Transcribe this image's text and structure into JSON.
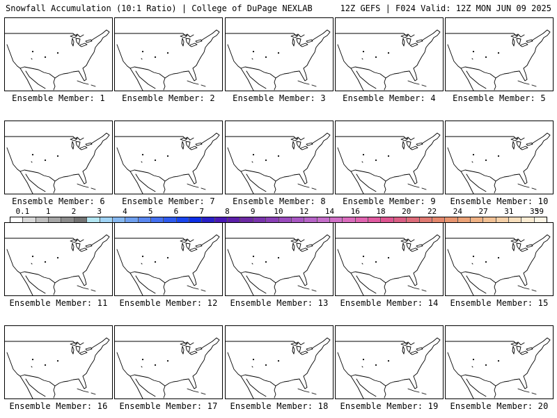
{
  "header": {
    "left": "Snowfall Accumulation (10:1 Ratio) | College of DuPage NEXLAB",
    "right": "12Z GEFS | F024 Valid: 12Z MON JUN 09 2025"
  },
  "panels": [
    {
      "label": "Ensemble Member: 1"
    },
    {
      "label": "Ensemble Member: 2"
    },
    {
      "label": "Ensemble Member: 3"
    },
    {
      "label": "Ensemble Member: 4"
    },
    {
      "label": "Ensemble Member: 5"
    },
    {
      "label": "Ensemble Member: 6"
    },
    {
      "label": "Ensemble Member: 7"
    },
    {
      "label": "Ensemble Member: 8"
    },
    {
      "label": "Ensemble Member: 9"
    },
    {
      "label": "Ensemble Member: 10"
    },
    {
      "label": "Ensemble Member: 11"
    },
    {
      "label": "Ensemble Member: 12"
    },
    {
      "label": "Ensemble Member: 13"
    },
    {
      "label": "Ensemble Member: 14"
    },
    {
      "label": "Ensemble Member: 15"
    },
    {
      "label": "Ensemble Member: 16"
    },
    {
      "label": "Ensemble Member: 17"
    },
    {
      "label": "Ensemble Member: 18"
    },
    {
      "label": "Ensemble Member: 19"
    },
    {
      "label": "Ensemble Member: 20"
    }
  ],
  "colorbar": {
    "labels": [
      "0.1",
      "1",
      "2",
      "3",
      "4",
      "5",
      "6",
      "7",
      "8",
      "9",
      "10",
      "12",
      "14",
      "16",
      "18",
      "20",
      "22",
      "24",
      "27",
      "31",
      "35",
      "39"
    ],
    "colors": [
      "#ffffff",
      "#d9d9d9",
      "#bfbfbf",
      "#a6a6a6",
      "#8c8c8c",
      "#737373",
      "#b3e6f2",
      "#9fd3f5",
      "#86b8f0",
      "#6e9fee",
      "#5a87f0",
      "#4470f0",
      "#2f5bef",
      "#1a45ee",
      "#0d2fe6",
      "#2a20c8",
      "#4a18b5",
      "#5c1fa8",
      "#6d2aa3",
      "#7a34ad",
      "#8a3fb6",
      "#9a4bbd",
      "#a857c2",
      "#b664c7",
      "#c46ec9",
      "#d070c6",
      "#da6cbd",
      "#e064b0",
      "#e05aa0",
      "#dd5490",
      "#da5e84",
      "#dd6c7a",
      "#e07a72",
      "#e4876c",
      "#e89570",
      "#eca378",
      "#efb285",
      "#f2c195",
      "#f5d0a8",
      "#f8dfbd",
      "#fbecd3",
      "#fdf5e6"
    ]
  }
}
